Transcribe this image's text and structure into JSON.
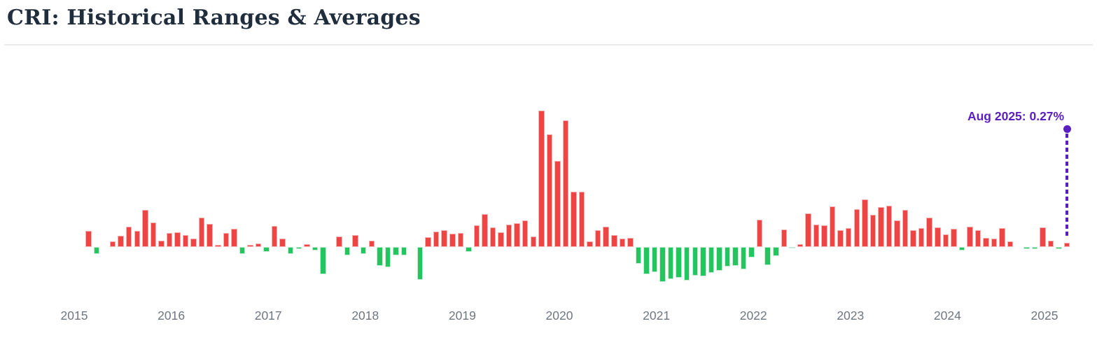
{
  "page": {
    "title": "CRI: Historical Ranges & Averages"
  },
  "chart_data": {
    "type": "bar",
    "title": "CRI: Historical Ranges & Averages",
    "unit": "%",
    "grid": false,
    "legend": false,
    "ylim": [
      -2.2,
      8.5
    ],
    "x_tick_labels": [
      "2015",
      "2016",
      "2017",
      "2018",
      "2019",
      "2020",
      "2021",
      "2022",
      "2023",
      "2024",
      "2025"
    ],
    "annotation": {
      "text": "Aug 2025: 0.27%",
      "month": "2025-08",
      "value_pct": 0.27
    },
    "colors": {
      "positive": "#ef4444",
      "positive_border": "#f9b3b3",
      "negative": "#22c55e",
      "negative_border": "#c4ecd4",
      "annotation": "#5b1ec0",
      "title": "#1f2d3d",
      "axis_label": "#6e7680"
    },
    "x": [
      "2015-07",
      "2015-08",
      "2015-09",
      "2015-10",
      "2015-11",
      "2015-12",
      "2016-01",
      "2016-02",
      "2016-03",
      "2016-04",
      "2016-05",
      "2016-06",
      "2016-07",
      "2016-08",
      "2016-09",
      "2016-10",
      "2016-11",
      "2016-12",
      "2017-01",
      "2017-02",
      "2017-03",
      "2017-04",
      "2017-05",
      "2017-06",
      "2017-07",
      "2017-08",
      "2017-09",
      "2017-10",
      "2017-11",
      "2017-12",
      "2018-01",
      "2018-02",
      "2018-03",
      "2018-04",
      "2018-05",
      "2018-06",
      "2018-07",
      "2018-08",
      "2018-09",
      "2018-10",
      "2018-11",
      "2018-12",
      "2019-01",
      "2019-02",
      "2019-03",
      "2019-04",
      "2019-05",
      "2019-06",
      "2019-07",
      "2019-08",
      "2019-09",
      "2019-10",
      "2019-11",
      "2019-12",
      "2020-01",
      "2020-02",
      "2020-03",
      "2020-04",
      "2020-05",
      "2020-06",
      "2020-07",
      "2020-08",
      "2020-09",
      "2020-10",
      "2020-11",
      "2020-12",
      "2021-01",
      "2021-02",
      "2021-03",
      "2021-04",
      "2021-05",
      "2021-06",
      "2021-07",
      "2021-08",
      "2021-09",
      "2021-10",
      "2021-11",
      "2021-12",
      "2022-01",
      "2022-02",
      "2022-03",
      "2022-04",
      "2022-05",
      "2022-06",
      "2022-07",
      "2022-08",
      "2022-09",
      "2022-10",
      "2022-11",
      "2022-12",
      "2023-01",
      "2023-02",
      "2023-03",
      "2023-04",
      "2023-05",
      "2023-06",
      "2023-07",
      "2023-08",
      "2023-09",
      "2023-10",
      "2023-11",
      "2023-12",
      "2024-01",
      "2024-02",
      "2024-03",
      "2024-04",
      "2024-05",
      "2024-06",
      "2024-07",
      "2024-08",
      "2024-09",
      "2024-10",
      "2024-11",
      "2024-12",
      "2025-01",
      "2025-02",
      "2025-03",
      "2025-04",
      "2025-05",
      "2025-06",
      "2025-07",
      "2025-08"
    ],
    "values": [
      0.97,
      -0.42,
      0,
      0.34,
      0.68,
      1.22,
      0.97,
      2.24,
      1.48,
      0.38,
      0.84,
      0.89,
      0.72,
      0.51,
      1.77,
      1.39,
      0.13,
      0.84,
      1.1,
      -0.42,
      0.13,
      0.21,
      -0.3,
      1.27,
      0.51,
      -0.42,
      -0.13,
      0.17,
      -0.21,
      -1.65,
      0,
      0.65,
      -0.51,
      0.72,
      -0.41,
      0.38,
      -1.12,
      -1.22,
      -0.51,
      -0.49,
      0,
      -1.98,
      0.59,
      0.93,
      1.01,
      0.82,
      0.84,
      -0.3,
      1.31,
      1.98,
      1.18,
      0.89,
      1.35,
      1.43,
      1.6,
      0.63,
      8.23,
      6.79,
      5.19,
      7.64,
      3.33,
      3.33,
      0.34,
      1.01,
      1.22,
      0.72,
      0.51,
      0.55,
      -1.01,
      -1.65,
      -1.5,
      -2.11,
      -1.92,
      -1.86,
      -2.04,
      -1.71,
      -1.79,
      -1.54,
      -1.43,
      -1.18,
      -1.12,
      -1.36,
      -0.62,
      1.66,
      -1.08,
      -0.56,
      1.06,
      -0.04,
      0.17,
      2.01,
      1.34,
      1.31,
      2.44,
      1.03,
      1.13,
      2.3,
      2.89,
      1.94,
      2.39,
      2.51,
      1.59,
      2.25,
      1.03,
      1.13,
      1.76,
      1.2,
      0.75,
      1.1,
      -0.19,
      1.21,
      1.03,
      0.55,
      0.49,
      1.13,
      0.33,
      0,
      -0.14,
      -0.11,
      1.17,
      0.38,
      -0.13,
      0.27
    ]
  }
}
